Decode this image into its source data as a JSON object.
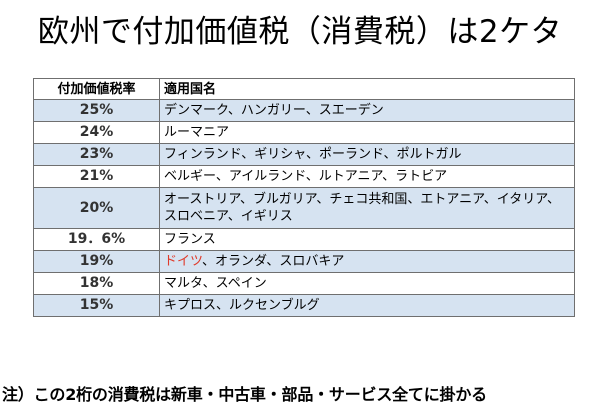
{
  "title": "欧州で付加価値税（消費税）は2ケタ",
  "table": {
    "headers": {
      "rate": "付加価値税率",
      "countries": "適用国名"
    },
    "rows": [
      {
        "rate": "25%",
        "countries": "デンマーク、ハンガリー、スエーデン"
      },
      {
        "rate": "24%",
        "countries": "ルーマニア"
      },
      {
        "rate": "23%",
        "countries": "フィンランド、ギリシャ、ポーランド、ポルトガル"
      },
      {
        "rate": "21%",
        "countries": "ベルギー、アイルランド、ルトアニア、ラトビア"
      },
      {
        "rate": "20%",
        "countries_line1": "オーストリア、ブルガリア、チェコ共和国、エトアニア、イタリア、",
        "countries_line2": "スロベニア、イギリス"
      },
      {
        "rate": "19．6%",
        "countries": "フランス"
      },
      {
        "rate": "19%",
        "countries_highlight": "ドイツ",
        "countries_rest": "、オランダ、スロバキア"
      },
      {
        "rate": "18%",
        "countries": "マルタ、スペイン"
      },
      {
        "rate": "15%",
        "countries": "キプロス、ルクセンブルグ"
      }
    ]
  },
  "note": "注）この2桁の消費税は新車・中古車・部品・サービス全てに掛かる",
  "colors": {
    "row_band": "#d6e3f1",
    "border": "#6f6f6f",
    "highlight": "#e03a2a"
  }
}
